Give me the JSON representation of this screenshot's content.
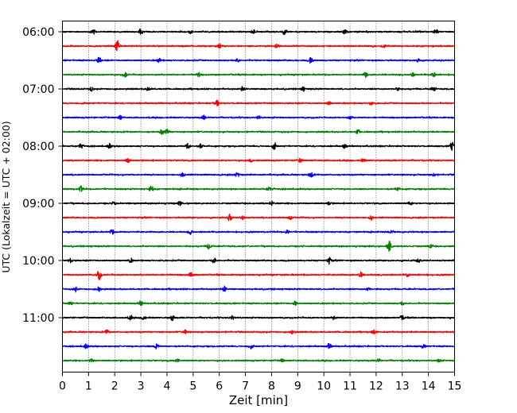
{
  "chart_data": {
    "type": "line",
    "title": "",
    "xlabel": "Zeit  [min]",
    "ylabel": "UTC (Lokalzeit = UTC + 02:00)",
    "xlim": [
      0,
      15
    ],
    "x_ticks": [
      0,
      1,
      2,
      3,
      4,
      5,
      6,
      7,
      8,
      9,
      10,
      11,
      12,
      13,
      14,
      15
    ],
    "x_tick_labels": [
      "0",
      "1",
      "2",
      "3",
      "4",
      "5",
      "6",
      "7",
      "8",
      "9",
      "10",
      "11",
      "12",
      "13",
      "14",
      "15"
    ],
    "y_tick_labels": [
      "06:00",
      "07:00",
      "08:00",
      "09:00",
      "10:00",
      "11:00"
    ],
    "y_tick_rows": [
      0,
      4,
      8,
      12,
      16,
      20
    ],
    "vertical_grid": true,
    "trace_colors": [
      "#000000",
      "#ff0000",
      "#0000ff",
      "#008000"
    ],
    "rows": [
      {
        "start": "06:00",
        "bursts": [
          [
            1.2,
            0.4
          ],
          [
            3.0,
            0.5
          ],
          [
            4.9,
            0.4
          ],
          [
            7.3,
            0.4
          ],
          [
            8.5,
            0.6
          ],
          [
            10.8,
            0.4
          ],
          [
            14.3,
            0.4
          ]
        ]
      },
      {
        "start": "06:15",
        "bursts": [
          [
            2.1,
            1.0
          ],
          [
            6.0,
            0.4
          ],
          [
            8.2,
            0.3
          ],
          [
            12.3,
            0.3
          ]
        ]
      },
      {
        "start": "06:30",
        "bursts": [
          [
            1.4,
            0.6
          ],
          [
            3.7,
            0.4
          ],
          [
            6.7,
            0.3
          ],
          [
            9.5,
            0.6
          ],
          [
            13.6,
            0.3
          ]
        ]
      },
      {
        "start": "06:45",
        "bursts": [
          [
            2.4,
            0.5
          ],
          [
            5.2,
            0.4
          ],
          [
            11.6,
            0.5
          ],
          [
            13.4,
            0.3
          ],
          [
            14.2,
            0.4
          ]
        ]
      },
      {
        "start": "07:00",
        "bursts": [
          [
            1.1,
            0.4
          ],
          [
            3.3,
            0.4
          ],
          [
            6.9,
            0.4
          ],
          [
            9.2,
            0.4
          ],
          [
            12.8,
            0.3
          ],
          [
            14.2,
            0.4
          ]
        ]
      },
      {
        "start": "07:15",
        "bursts": [
          [
            5.9,
            0.7
          ],
          [
            10.2,
            0.3
          ],
          [
            11.8,
            0.3
          ]
        ]
      },
      {
        "start": "07:30",
        "bursts": [
          [
            2.2,
            0.4
          ],
          [
            5.4,
            0.4
          ],
          [
            7.5,
            0.3
          ],
          [
            11.0,
            0.3
          ]
        ]
      },
      {
        "start": "07:45",
        "bursts": [
          [
            3.8,
            0.5
          ],
          [
            4.0,
            0.5
          ],
          [
            11.3,
            0.4
          ]
        ]
      },
      {
        "start": "08:00",
        "bursts": [
          [
            0.7,
            0.4
          ],
          [
            1.8,
            0.4
          ],
          [
            4.8,
            0.6
          ],
          [
            5.3,
            0.4
          ],
          [
            8.1,
            0.6
          ],
          [
            10.8,
            0.4
          ],
          [
            14.9,
            0.8
          ]
        ]
      },
      {
        "start": "08:15",
        "bursts": [
          [
            2.5,
            0.4
          ],
          [
            7.2,
            0.4
          ],
          [
            9.1,
            0.4
          ],
          [
            11.5,
            0.3
          ]
        ]
      },
      {
        "start": "08:30",
        "bursts": [
          [
            4.6,
            0.4
          ],
          [
            6.7,
            0.5
          ],
          [
            9.5,
            0.5
          ],
          [
            14.2,
            0.3
          ]
        ]
      },
      {
        "start": "08:45",
        "bursts": [
          [
            0.7,
            0.6
          ],
          [
            3.4,
            0.6
          ],
          [
            7.9,
            0.4
          ],
          [
            12.8,
            0.3
          ]
        ]
      },
      {
        "start": "09:00",
        "bursts": [
          [
            2.0,
            0.4
          ],
          [
            4.5,
            0.4
          ],
          [
            8.0,
            0.4
          ],
          [
            10.2,
            0.3
          ],
          [
            13.3,
            0.4
          ]
        ]
      },
      {
        "start": "09:15",
        "bursts": [
          [
            6.4,
            0.6
          ],
          [
            6.9,
            0.4
          ],
          [
            8.7,
            0.4
          ],
          [
            11.8,
            0.4
          ]
        ]
      },
      {
        "start": "09:30",
        "bursts": [
          [
            1.9,
            0.4
          ],
          [
            4.9,
            0.4
          ],
          [
            8.6,
            0.3
          ],
          [
            12.6,
            0.3
          ]
        ]
      },
      {
        "start": "09:45",
        "bursts": [
          [
            5.6,
            0.5
          ],
          [
            12.5,
            1.0
          ],
          [
            14.1,
            0.3
          ]
        ]
      },
      {
        "start": "10:00",
        "bursts": [
          [
            0.3,
            0.4
          ],
          [
            2.6,
            0.4
          ],
          [
            5.8,
            0.5
          ],
          [
            10.2,
            0.6
          ],
          [
            13.6,
            0.3
          ]
        ]
      },
      {
        "start": "10:15",
        "bursts": [
          [
            1.4,
            1.0
          ],
          [
            4.9,
            0.5
          ],
          [
            11.4,
            0.5
          ],
          [
            13.2,
            0.3
          ]
        ]
      },
      {
        "start": "10:30",
        "bursts": [
          [
            0.5,
            0.4
          ],
          [
            1.4,
            0.4
          ],
          [
            6.2,
            0.5
          ],
          [
            11.7,
            0.3
          ]
        ]
      },
      {
        "start": "10:45",
        "bursts": [
          [
            0.3,
            0.4
          ],
          [
            3.0,
            0.4
          ],
          [
            8.9,
            0.4
          ],
          [
            13.0,
            0.3
          ]
        ]
      },
      {
        "start": "11:00",
        "bursts": [
          [
            2.6,
            0.4
          ],
          [
            3.1,
            0.4
          ],
          [
            4.2,
            0.5
          ],
          [
            6.5,
            0.4
          ],
          [
            10.4,
            0.4
          ],
          [
            13.0,
            0.4
          ]
        ]
      },
      {
        "start": "11:15",
        "bursts": [
          [
            1.7,
            0.4
          ],
          [
            4.7,
            0.4
          ],
          [
            8.8,
            0.4
          ],
          [
            11.9,
            0.3
          ]
        ]
      },
      {
        "start": "11:30",
        "bursts": [
          [
            0.9,
            0.4
          ],
          [
            3.6,
            0.5
          ],
          [
            7.2,
            0.4
          ],
          [
            10.2,
            0.5
          ],
          [
            13.8,
            0.3
          ]
        ]
      },
      {
        "start": "11:45",
        "bursts": [
          [
            1.1,
            0.4
          ],
          [
            4.4,
            0.4
          ],
          [
            8.4,
            0.3
          ],
          [
            12.1,
            0.3
          ],
          [
            14.4,
            0.3
          ]
        ]
      }
    ]
  }
}
